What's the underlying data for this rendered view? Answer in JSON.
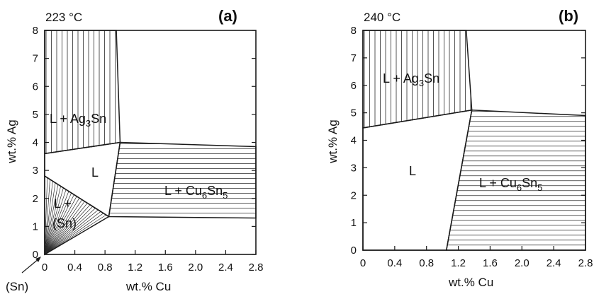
{
  "figure": {
    "panel_a": {
      "temperature": "223 °C",
      "tag": "(a)",
      "xlabel": "wt.% Cu",
      "ylabel": "wt.% Ag",
      "xticks": [
        "0",
        "0.4",
        "0.8",
        "1.2",
        "1.6",
        "2.0",
        "2.4",
        "2.8"
      ],
      "yticks": [
        "0",
        "1",
        "2",
        "3",
        "4",
        "5",
        "6",
        "7",
        "8"
      ],
      "phase_ag3sn": "L + Ag3Sn",
      "phase_l": "L",
      "phase_cu6sn5": "L + Cu6Sn5",
      "phase_sn_line1": "L +",
      "phase_sn_line2": "(Sn)",
      "corner_label": "(Sn)"
    },
    "panel_b": {
      "temperature": "240 °C",
      "tag": "(b)",
      "xlabel": "wt.% Cu",
      "ylabel": "wt.% Ag",
      "xticks": [
        "0",
        "0.4",
        "0.8",
        "1.2",
        "1.6",
        "2.0",
        "2.4",
        "2.8"
      ],
      "yticks": [
        "0",
        "1",
        "2",
        "3",
        "4",
        "5",
        "6",
        "7",
        "8"
      ],
      "phase_ag3sn": "L + Ag3Sn",
      "phase_l": "L",
      "phase_cu6sn5": "L + Cu6Sn5"
    }
  },
  "chart_data": [
    {
      "type": "phase-diagram",
      "panel": "a",
      "x_range": [
        0,
        2.8
      ],
      "y_range": [
        0,
        8
      ],
      "regions": {
        "L + Ag3Sn": [
          [
            0,
            8
          ],
          [
            0.95,
            8
          ],
          [
            1.0,
            4.0
          ],
          [
            0,
            3.6
          ]
        ],
        "L": [
          [
            0,
            3.6
          ],
          [
            1.0,
            4.0
          ],
          [
            0.85,
            1.35
          ],
          [
            0,
            2.8
          ]
        ],
        "L + Cu6Sn5": [
          [
            1.0,
            4.0
          ],
          [
            2.8,
            3.85
          ],
          [
            2.8,
            1.3
          ],
          [
            0.85,
            1.35
          ]
        ],
        "L + (Sn)": [
          [
            0,
            2.8
          ],
          [
            0.85,
            1.35
          ],
          [
            0,
            0
          ]
        ]
      }
    },
    {
      "type": "phase-diagram",
      "panel": "b",
      "x_range": [
        0,
        2.8
      ],
      "y_range": [
        0,
        8
      ],
      "regions": {
        "L + Ag3Sn": [
          [
            0,
            8
          ],
          [
            1.3,
            8
          ],
          [
            1.37,
            5.1
          ],
          [
            0,
            4.45
          ]
        ],
        "L": [
          [
            0,
            4.45
          ],
          [
            1.37,
            5.1
          ],
          [
            1.05,
            0
          ],
          [
            0,
            0
          ]
        ],
        "L + Cu6Sn5": [
          [
            1.37,
            5.1
          ],
          [
            2.8,
            4.9
          ],
          [
            2.8,
            0
          ],
          [
            1.05,
            0
          ]
        ]
      }
    }
  ]
}
